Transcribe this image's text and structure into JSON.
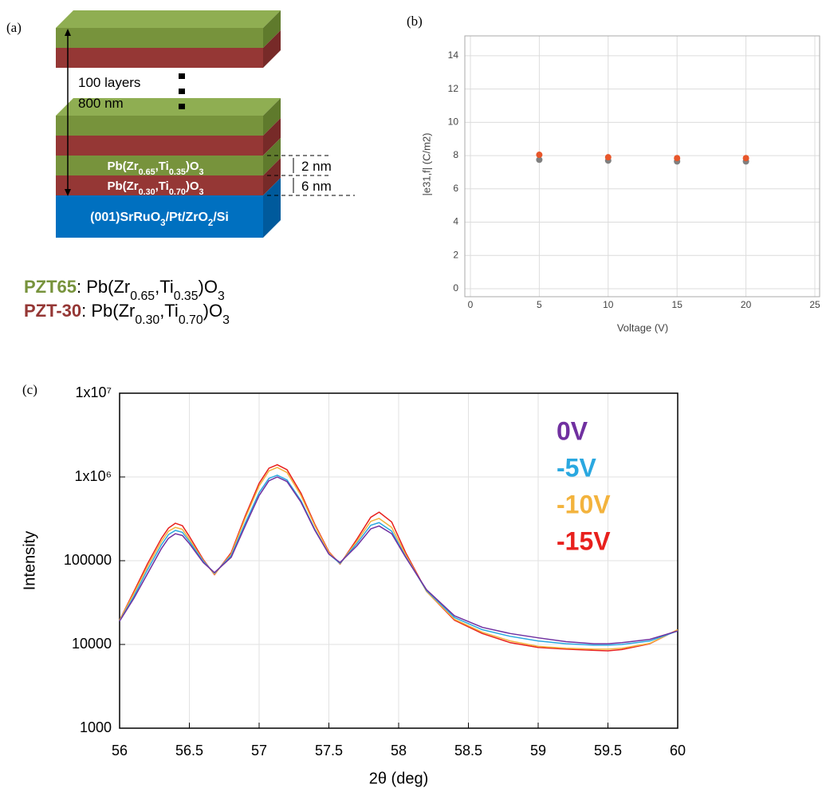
{
  "diagram": {
    "label": "(a)",
    "stack_note": [
      "100 layers",
      "800 nm"
    ],
    "layers": [
      {
        "segments": [
          "Pb(Zr",
          "0.65",
          ",Ti",
          "0.35",
          ")O",
          "3"
        ]
      },
      {
        "segments": [
          "Pb(Zr",
          "0.30",
          ",Ti",
          "0.70",
          ")O",
          "3"
        ]
      }
    ],
    "thicknesses": [
      "2 nm",
      "6 nm"
    ],
    "substrate": [
      "(001)SrRuO",
      "3",
      "/Pt/ZrO",
      "2",
      "/Si"
    ],
    "legend": [
      {
        "name": "PZT65",
        "segments": [
          ": Pb(Zr",
          "0.65",
          ",Ti",
          "0.35",
          ")O",
          "3"
        ]
      },
      {
        "name": "PZT-30",
        "segments": [
          ": Pb(Zr",
          "0.30",
          ",Ti",
          "0.70",
          ")O",
          "3"
        ]
      }
    ]
  },
  "chart_data": [
    {
      "type": "scatter",
      "label": "(b)",
      "x": [
        5,
        10,
        15,
        20
      ],
      "series": [
        {
          "color": "#7f7f7f",
          "values": [
            7.75,
            7.7,
            7.65,
            7.65
          ]
        },
        {
          "color": "#e8562a",
          "values": [
            8.05,
            7.9,
            7.85,
            7.85
          ]
        }
      ],
      "xlim": [
        0,
        25
      ],
      "xticks": [
        0,
        5,
        10,
        15,
        20,
        25
      ],
      "ylim": [
        0,
        15
      ],
      "yticks": [
        0,
        2,
        4,
        6,
        8,
        10,
        12,
        14
      ],
      "xlabel": "Voltage (V)",
      "ylabel": "|e31,f| (C/m2)",
      "grid": true
    },
    {
      "type": "line",
      "label": "(c)",
      "x": [
        56,
        56.1,
        56.2,
        56.3,
        56.35,
        56.4,
        56.45,
        56.5,
        56.6,
        56.68,
        56.8,
        56.9,
        57,
        57.07,
        57.13,
        57.2,
        57.3,
        57.4,
        57.5,
        57.58,
        57.7,
        57.8,
        57.86,
        57.95,
        58.05,
        58.2,
        58.4,
        58.6,
        58.8,
        59,
        59.2,
        59.4,
        59.5,
        59.6,
        59.8,
        60
      ],
      "series": [
        {
          "name": "0V",
          "color": "#7030a0",
          "values": [
            19000,
            35000,
            70000,
            140000,
            185000,
            210000,
            200000,
            160000,
            95000,
            72000,
            110000,
            260000,
            600000,
            900000,
            1000000,
            880000,
            500000,
            230000,
            120000,
            95000,
            150000,
            240000,
            260000,
            210000,
            110000,
            45000,
            22000,
            16000,
            13500,
            12000,
            10800,
            10200,
            10200,
            10500,
            11500,
            14500
          ]
        },
        {
          "name": "-5V",
          "color": "#2aa8e0",
          "values": [
            19000,
            37000,
            78000,
            155000,
            205000,
            230000,
            218000,
            170000,
            98000,
            71000,
            115000,
            280000,
            650000,
            960000,
            1050000,
            920000,
            520000,
            235000,
            120000,
            93000,
            160000,
            265000,
            285000,
            225000,
            112000,
            44000,
            21000,
            15000,
            12500,
            11000,
            10200,
            9800,
            9800,
            10000,
            11000,
            14500
          ]
        },
        {
          "name": "-10V",
          "color": "#f3b33d",
          "values": [
            19500,
            40000,
            85000,
            170000,
            225000,
            250000,
            237000,
            180000,
            100000,
            69000,
            120000,
            320000,
            780000,
            1180000,
            1300000,
            1130000,
            600000,
            260000,
            125000,
            92000,
            170000,
            295000,
            320000,
            250000,
            118000,
            43000,
            20000,
            14000,
            11000,
            9500,
            9000,
            8800,
            8800,
            9000,
            10300,
            15000
          ]
        },
        {
          "name": "-15V",
          "color": "#e8201d",
          "values": [
            19500,
            42000,
            92000,
            185000,
            245000,
            280000,
            262000,
            195000,
            103000,
            68000,
            125000,
            340000,
            840000,
            1270000,
            1400000,
            1220000,
            640000,
            270000,
            128000,
            91000,
            180000,
            330000,
            380000,
            290000,
            125000,
            43000,
            19500,
            13500,
            10500,
            9200,
            8800,
            8500,
            8400,
            8700,
            10200,
            15000
          ]
        }
      ],
      "xlim": [
        56,
        60
      ],
      "xticks": [
        56,
        56.5,
        57,
        57.5,
        58,
        58.5,
        59,
        59.5,
        60
      ],
      "ylog": true,
      "ylim": [
        1000,
        10000000
      ],
      "yticks": [
        {
          "value": 10000000,
          "label": "1x10⁷"
        },
        {
          "value": 1000000,
          "label": "1x10⁶"
        },
        100000,
        10000,
        1000
      ],
      "xlabel": "2θ (deg)",
      "ylabel": "Intensity",
      "legend": "upper right",
      "grid": true
    }
  ]
}
